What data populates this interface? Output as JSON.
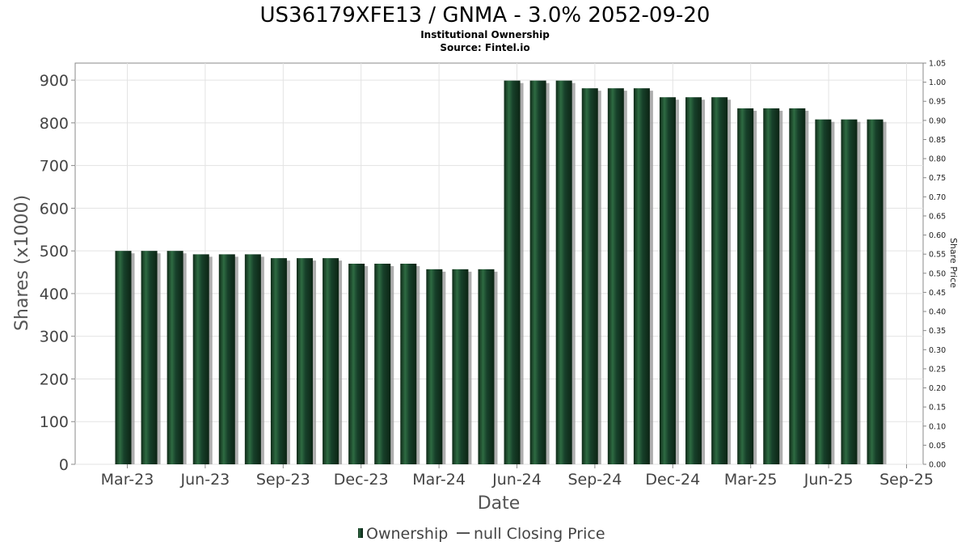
{
  "chart_data": {
    "type": "bar",
    "title": "US36179XFE13 / GNMA - 3.0% 2052-09-20",
    "subtitle_lines": [
      "Institutional Ownership",
      "Source: Fintel.io"
    ],
    "xlabel": "Date",
    "ylabel": "Shares (x1000)",
    "y2label": "Share Price",
    "ylim": [
      0,
      940
    ],
    "y2lim": [
      0,
      1.05
    ],
    "yticks": [
      "0",
      "100",
      "200",
      "300",
      "400",
      "500",
      "600",
      "700",
      "800",
      "900"
    ],
    "y2ticks": [
      "0.00",
      "0.05",
      "0.10",
      "0.15",
      "0.20",
      "0.25",
      "0.30",
      "0.35",
      "0.40",
      "0.45",
      "0.50",
      "0.55",
      "0.60",
      "0.65",
      "0.70",
      "0.75",
      "0.80",
      "0.85",
      "0.90",
      "0.95",
      "1.00",
      "1.05"
    ],
    "xticks": [
      "Mar-23",
      "Jun-23",
      "Sep-23",
      "Dec-23",
      "Mar-24",
      "Jun-24",
      "Sep-24",
      "Dec-24",
      "Mar-25",
      "Jun-25",
      "Sep-25"
    ],
    "series": [
      {
        "name": "Ownership",
        "color": "#1f4a2c",
        "values": [
          500,
          500,
          500,
          492,
          492,
          492,
          483,
          483,
          483,
          470,
          470,
          470,
          457,
          457,
          457,
          899,
          899,
          899,
          881,
          881,
          881,
          860,
          860,
          860,
          834,
          834,
          834,
          808,
          808,
          808
        ]
      }
    ],
    "legend": [
      {
        "label": "Ownership",
        "marker": "bar"
      },
      {
        "label": "null Closing Price",
        "marker": "line"
      }
    ],
    "legend_position": "bottom",
    "grid": true
  }
}
